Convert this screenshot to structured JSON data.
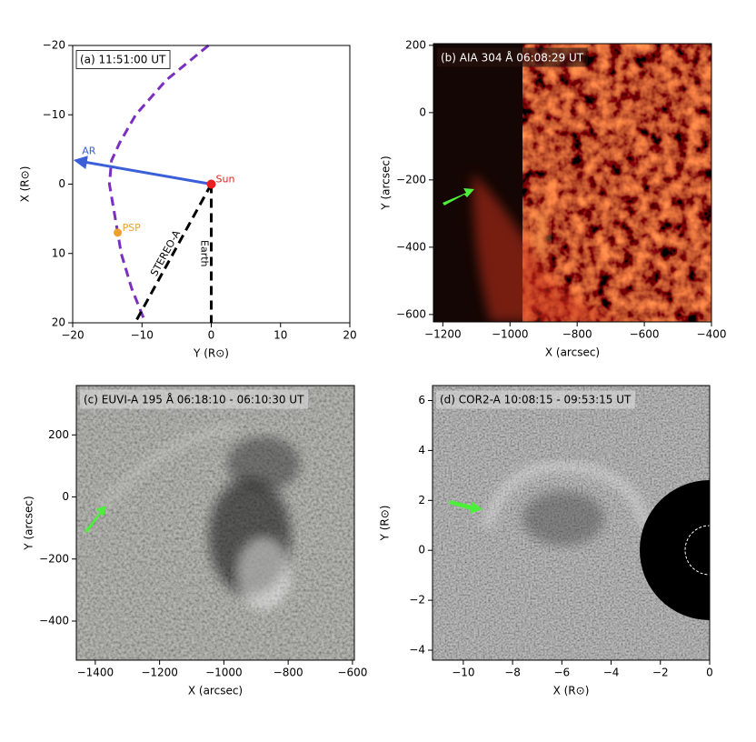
{
  "chart_data": [
    {
      "type": "orbit",
      "title": "(a)  11:51:00 UT",
      "xlabel": "Y (R⊙)",
      "ylabel": "X (R⊙)",
      "xlim": [
        -20,
        20
      ],
      "ylim": [
        20,
        -20
      ],
      "xticks": [
        {
          "value": -20,
          "label": "−20"
        },
        {
          "value": -10,
          "label": "−10"
        },
        0,
        10,
        20
      ],
      "yticks": [
        {
          "value": -20,
          "label": "−20"
        },
        {
          "value": -10,
          "label": "−10"
        },
        0,
        10,
        20
      ],
      "orbit": {
        "color": "#7b2fbe",
        "x": [
          -0.4,
          -6.5,
          -10.9,
          -13.2,
          -14.4,
          -14.7,
          -13.5,
          -13,
          -11.5,
          -9.5
        ],
        "y": [
          -20,
          -15,
          -10,
          -6,
          -3.4,
          0,
          7,
          10,
          15,
          20
        ]
      },
      "lines": [
        {
          "name": "AR",
          "color": "#3a5fd6",
          "x": [
            0,
            -19.5
          ],
          "y": [
            0,
            -3.4
          ]
        },
        {
          "name": "STEREO-A",
          "color": "#000000",
          "x": [
            0,
            -11
          ],
          "y": [
            0,
            20
          ]
        },
        {
          "name": "Earth",
          "color": "#000000",
          "x": [
            0,
            0
          ],
          "y": [
            0,
            20
          ]
        }
      ],
      "points": [
        {
          "name": "Sun",
          "color": "#e8201f",
          "x": 0,
          "y": 0
        },
        {
          "name": "PSP",
          "color": "#f0a030",
          "x": -13.5,
          "y": 7
        }
      ]
    },
    {
      "type": "image",
      "title": "(b)  AIA 304 Å  06:08:29 UT",
      "xlabel": "X (arcsec)",
      "ylabel": "Y (arcsec)",
      "xlim": [
        -1228,
        -400
      ],
      "ylim": [
        -622,
        205
      ],
      "xticks": [
        {
          "value": -1200,
          "label": "−1200"
        },
        {
          "value": -1000,
          "label": "−1000"
        },
        {
          "value": -800,
          "label": "−800"
        },
        {
          "value": -600,
          "label": "−600"
        },
        {
          "value": -400,
          "label": "−400"
        }
      ],
      "yticks": [
        {
          "value": -600,
          "label": "−600"
        },
        {
          "value": -400,
          "label": "−400"
        },
        {
          "value": -200,
          "label": "−200"
        },
        0,
        200
      ]
    },
    {
      "type": "image",
      "title": "(c)  EUVI-A 195 Å  06:18:10 - 06:10:30 UT",
      "xlabel": "X (arcsec)",
      "ylabel": "Y (arcsec)",
      "xlim": [
        -1459,
        -594
      ],
      "ylim": [
        -526,
        359
      ],
      "xticks": [
        {
          "value": -1400,
          "label": "−1400"
        },
        {
          "value": -1200,
          "label": "−1200"
        },
        {
          "value": -1000,
          "label": "−1000"
        },
        {
          "value": -800,
          "label": "−800"
        },
        {
          "value": -600,
          "label": "−600"
        }
      ],
      "yticks": [
        {
          "value": -400,
          "label": "−400"
        },
        {
          "value": -200,
          "label": "−200"
        },
        0,
        200
      ]
    },
    {
      "type": "image",
      "title": "(d)  COR2-A  10:08:15 - 09:53:15 UT",
      "xlabel": "X (R⊙)",
      "ylabel": "Y (R⊙)",
      "xlim": [
        -11.25,
        0
      ],
      "ylim": [
        -4.4,
        6.6
      ],
      "xticks": [
        {
          "value": -10,
          "label": "−10"
        },
        {
          "value": -8,
          "label": "−8"
        },
        {
          "value": -6,
          "label": "−6"
        },
        {
          "value": -4,
          "label": "−4"
        },
        {
          "value": -2,
          "label": "−2"
        },
        0
      ],
      "yticks": [
        {
          "value": -4,
          "label": "−4"
        },
        {
          "value": -2,
          "label": "−2"
        },
        0,
        2,
        4,
        6
      ]
    }
  ]
}
